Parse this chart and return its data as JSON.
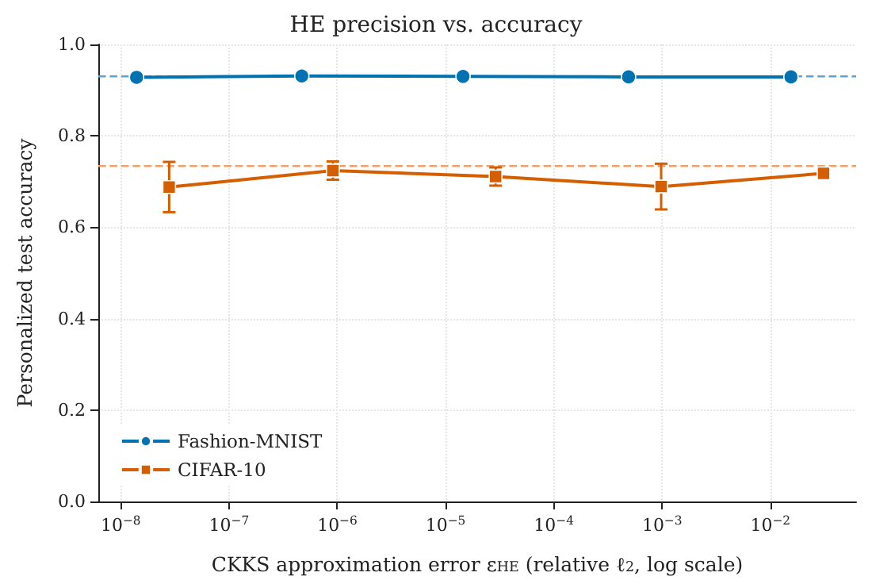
{
  "chart_data": {
    "type": "line",
    "title": "HE precision vs. accuracy",
    "xlabel": "CKKS approximation error ε$_{HE}$ (relative ℓ$_{2}$, log scale)",
    "ylabel": "Personalized test accuracy",
    "log": "x",
    "grid": true,
    "legend": "bottom left",
    "line_style": "solid",
    "xlim": [
      6.2e-09,
      0.062
    ],
    "xticks": [
      {
        "value": 1e-08,
        "label": "10$^{−8}$"
      },
      {
        "value": 1e-07,
        "label": "10$^{−7}$"
      },
      {
        "value": 1e-06,
        "label": "10$^{−6}$"
      },
      {
        "value": 1e-05,
        "label": "10$^{−5}$"
      },
      {
        "value": 0.0001,
        "label": "10$^{−4}$"
      },
      {
        "value": 0.001,
        "label": "10$^{−3}$"
      },
      {
        "value": 0.01,
        "label": "10$^{−2}$"
      }
    ],
    "ylim": [
      0,
      1
    ],
    "yticks": [
      {
        "value": 0,
        "label": "0.0"
      },
      {
        "value": 0.2,
        "label": "0.2"
      },
      {
        "value": 0.4,
        "label": "0.4"
      },
      {
        "value": 0.6,
        "label": "0.6"
      },
      {
        "value": 0.8,
        "label": "0.8"
      },
      {
        "value": 1,
        "label": "1.0"
      }
    ],
    "series": [
      {
        "name": "Fashion-MNIST",
        "color": "#0072b2",
        "marker": "circle",
        "x": [
          1.4e-08,
          4.7e-07,
          1.45e-05,
          0.00049,
          0.0155
        ],
        "values": [
          0.928,
          0.931,
          0.93,
          0.929,
          0.929
        ]
      },
      {
        "name": "CIFAR-10",
        "color": "#d55e00",
        "marker": "square",
        "x": [
          2.8e-08,
          9.1e-07,
          2.9e-05,
          0.00098,
          0.031
        ],
        "values": [
          0.688,
          0.724,
          0.711,
          0.689,
          0.718
        ],
        "errors": [
          0.055,
          0.02,
          0.02,
          0.05,
          null
        ]
      }
    ],
    "ref_lines": [
      {
        "axis": "y",
        "value": 0.93,
        "color": "#5ba3d6",
        "line_style": "dashed"
      },
      {
        "axis": "y",
        "value": 0.734,
        "color": "#f0a068",
        "line_style": "dashed"
      }
    ]
  }
}
